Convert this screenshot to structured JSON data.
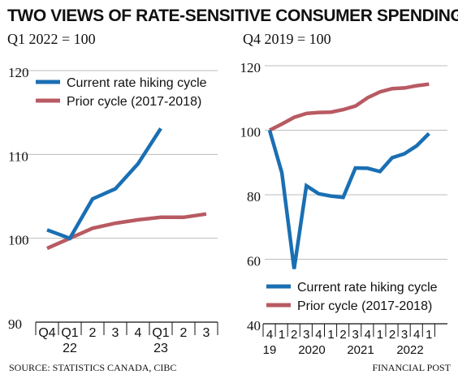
{
  "title": "TWO VIEWS OF RATE-SENSITIVE CONSUMER SPENDING",
  "source": "SOURCE: STATISTICS CANADA, CIBC",
  "brand": "FINANCIAL POST",
  "colors": {
    "current": "#1a6fb3",
    "prior": "#b85a62",
    "grid": "#bdbdbd",
    "axis": "#111111",
    "text": "#111111"
  },
  "chart_data": [
    {
      "type": "line",
      "subtitle": "Q1 2022 = 100",
      "x": [
        "Q4",
        "Q1",
        "2",
        "3",
        "4",
        "Q1",
        "2",
        "3"
      ],
      "x_year_labels": [
        "22",
        "23"
      ],
      "ylim": [
        90,
        120
      ],
      "yticks": [
        90,
        100,
        110,
        120
      ],
      "grid": true,
      "legend": "top-left",
      "series": [
        {
          "name": "Current rate hiking cycle",
          "values": [
            101.0,
            100.0,
            104.7,
            105.9,
            108.9,
            113.1,
            null,
            null
          ]
        },
        {
          "name": "Prior cycle (2017-2018)",
          "values": [
            98.8,
            100.0,
            101.2,
            101.8,
            102.2,
            102.5,
            102.5,
            102.9
          ]
        }
      ]
    },
    {
      "type": "line",
      "subtitle": "Q4 2019 = 100",
      "x": [
        "4",
        "1",
        "2",
        "3",
        "4",
        "1",
        "2",
        "3",
        "4",
        "1",
        "2",
        "3",
        "4",
        "1"
      ],
      "x_year_labels": [
        "19",
        "2020",
        "2021",
        "2022"
      ],
      "ylim": [
        40,
        120
      ],
      "yticks": [
        40,
        60,
        80,
        100,
        120
      ],
      "grid": true,
      "legend": "bottom",
      "series": [
        {
          "name": "Current rate hiking cycle",
          "values": [
            100.0,
            86.8,
            57.0,
            82.8,
            80.3,
            79.6,
            79.2,
            88.3,
            88.2,
            87.2,
            91.5,
            92.7,
            95.2,
            99.0
          ]
        },
        {
          "name": "Prior cycle (2017-2018)",
          "values": [
            100.0,
            101.9,
            104.0,
            105.2,
            105.5,
            105.6,
            106.4,
            107.5,
            110.1,
            111.9,
            112.9,
            113.1,
            113.8,
            114.3
          ]
        }
      ]
    }
  ]
}
